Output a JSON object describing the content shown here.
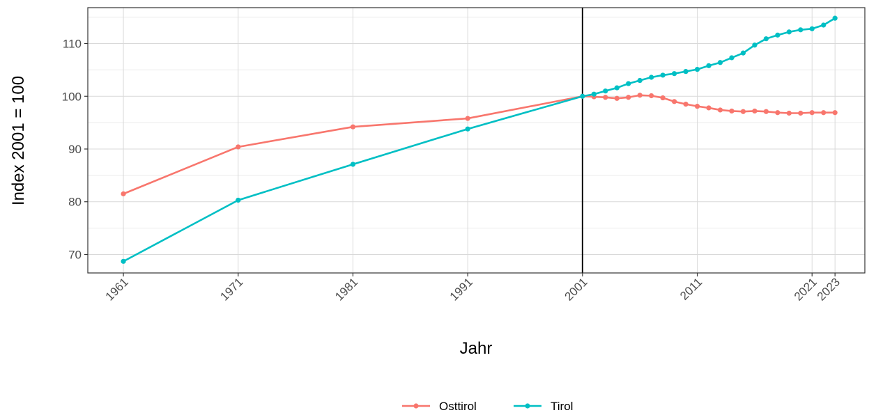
{
  "chart_data": {
    "type": "line",
    "xlabel": "Jahr",
    "ylabel": "Index 2001 = 100",
    "xlim": [
      1957.9,
      2025.6
    ],
    "ylim": [
      66.5,
      116.8
    ],
    "x_ticks": [
      1961,
      1971,
      1981,
      1991,
      2001,
      2011,
      2021,
      2023
    ],
    "x_tick_labels": [
      "1961",
      "1971",
      "1981",
      "1991",
      "2001",
      "2011",
      "2021",
      "2023"
    ],
    "y_ticks": [
      70,
      80,
      90,
      100,
      110
    ],
    "y_tick_labels": [
      "70",
      "80",
      "90",
      "100",
      "110"
    ],
    "vline_x": 2001,
    "grid": true,
    "legend_position": "bottom",
    "series": [
      {
        "name": "Osttirol",
        "color": "#F8766D",
        "points": [
          [
            1961,
            81.5
          ],
          [
            1971,
            90.4
          ],
          [
            1981,
            94.2
          ],
          [
            1991,
            95.8
          ],
          [
            2001,
            100.0
          ],
          [
            2002,
            99.9
          ],
          [
            2003,
            99.8
          ],
          [
            2004,
            99.6
          ],
          [
            2005,
            99.8
          ],
          [
            2006,
            100.2
          ],
          [
            2007,
            100.1
          ],
          [
            2008,
            99.7
          ],
          [
            2009,
            99.0
          ],
          [
            2010,
            98.5
          ],
          [
            2011,
            98.1
          ],
          [
            2012,
            97.8
          ],
          [
            2013,
            97.4
          ],
          [
            2014,
            97.2
          ],
          [
            2015,
            97.1
          ],
          [
            2016,
            97.2
          ],
          [
            2017,
            97.1
          ],
          [
            2018,
            96.9
          ],
          [
            2019,
            96.8
          ],
          [
            2020,
            96.8
          ],
          [
            2021,
            96.9
          ],
          [
            2022,
            96.9
          ],
          [
            2023,
            96.9
          ]
        ]
      },
      {
        "name": "Tirol",
        "color": "#00BFC4",
        "points": [
          [
            1961,
            68.7
          ],
          [
            1971,
            80.3
          ],
          [
            1981,
            87.1
          ],
          [
            1991,
            93.8
          ],
          [
            2001,
            100.0
          ],
          [
            2002,
            100.4
          ],
          [
            2003,
            101.0
          ],
          [
            2004,
            101.6
          ],
          [
            2005,
            102.4
          ],
          [
            2006,
            103.0
          ],
          [
            2007,
            103.6
          ],
          [
            2008,
            104.0
          ],
          [
            2009,
            104.3
          ],
          [
            2010,
            104.7
          ],
          [
            2011,
            105.1
          ],
          [
            2012,
            105.8
          ],
          [
            2013,
            106.4
          ],
          [
            2014,
            107.3
          ],
          [
            2015,
            108.2
          ],
          [
            2016,
            109.7
          ],
          [
            2017,
            110.9
          ],
          [
            2018,
            111.6
          ],
          [
            2019,
            112.2
          ],
          [
            2020,
            112.6
          ],
          [
            2021,
            112.8
          ],
          [
            2022,
            113.5
          ],
          [
            2023,
            114.8
          ]
        ]
      }
    ]
  }
}
